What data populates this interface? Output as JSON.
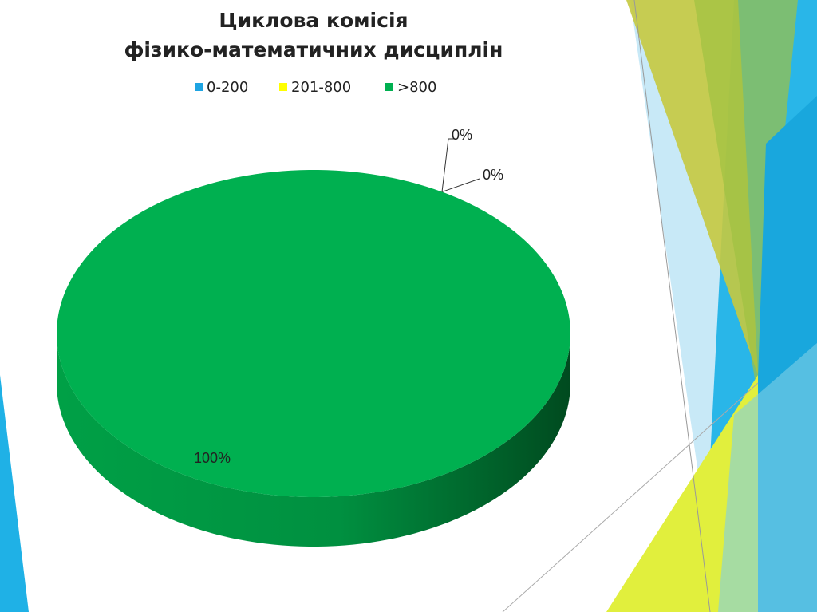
{
  "chart_data": {
    "type": "pie",
    "title": [
      "Циклова комісія",
      "фізико-математичних дисциплін"
    ],
    "categories": [
      "0-200",
      "201-800",
      ">800"
    ],
    "values": [
      0,
      0,
      100
    ],
    "value_labels": [
      "0%",
      "0%",
      "100%"
    ],
    "colors": [
      "#1ea4e2",
      "#ffff00",
      "#00b050"
    ],
    "legend": "top"
  }
}
